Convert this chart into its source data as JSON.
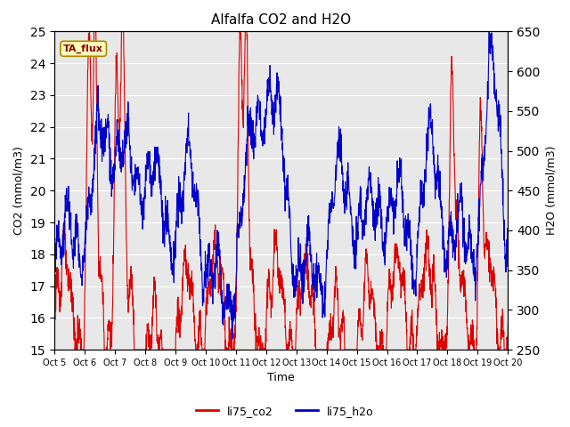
{
  "title": "Alfalfa CO2 and H2O",
  "xlabel": "Time",
  "ylabel_left": "CO2 (mmol/m3)",
  "ylabel_right": "H2O (mmol/m3)",
  "ylim_left": [
    15.0,
    25.0
  ],
  "ylim_right": [
    250,
    650
  ],
  "yticks_left": [
    15.0,
    16.0,
    17.0,
    18.0,
    19.0,
    20.0,
    21.0,
    22.0,
    23.0,
    24.0,
    25.0
  ],
  "yticks_right": [
    250,
    300,
    350,
    400,
    450,
    500,
    550,
    600,
    650
  ],
  "xtick_labels": [
    "Oct 5",
    "Oct 6",
    "Oct 7",
    "Oct 8",
    "Oct 9",
    "Oct 10",
    "Oct 11",
    "Oct 12",
    "Oct 13",
    "Oct 14",
    "Oct 15",
    "Oct 16",
    "Oct 17",
    "Oct 18",
    "Oct 19",
    "Oct 20"
  ],
  "legend_labels": [
    "li75_co2",
    "li75_h2o"
  ],
  "co2_color": "#DD0000",
  "h2o_color": "#0000CC",
  "annotation_text": "TA_flux",
  "annotation_bg": "#FFFFBB",
  "annotation_border": "#AA8800",
  "annotation_text_color": "#880000",
  "fig_bg": "#FFFFFF",
  "plot_bg": "#E8E8E8",
  "grid_color": "#FFFFFF",
  "linewidth": 0.8,
  "n_points": 2000
}
